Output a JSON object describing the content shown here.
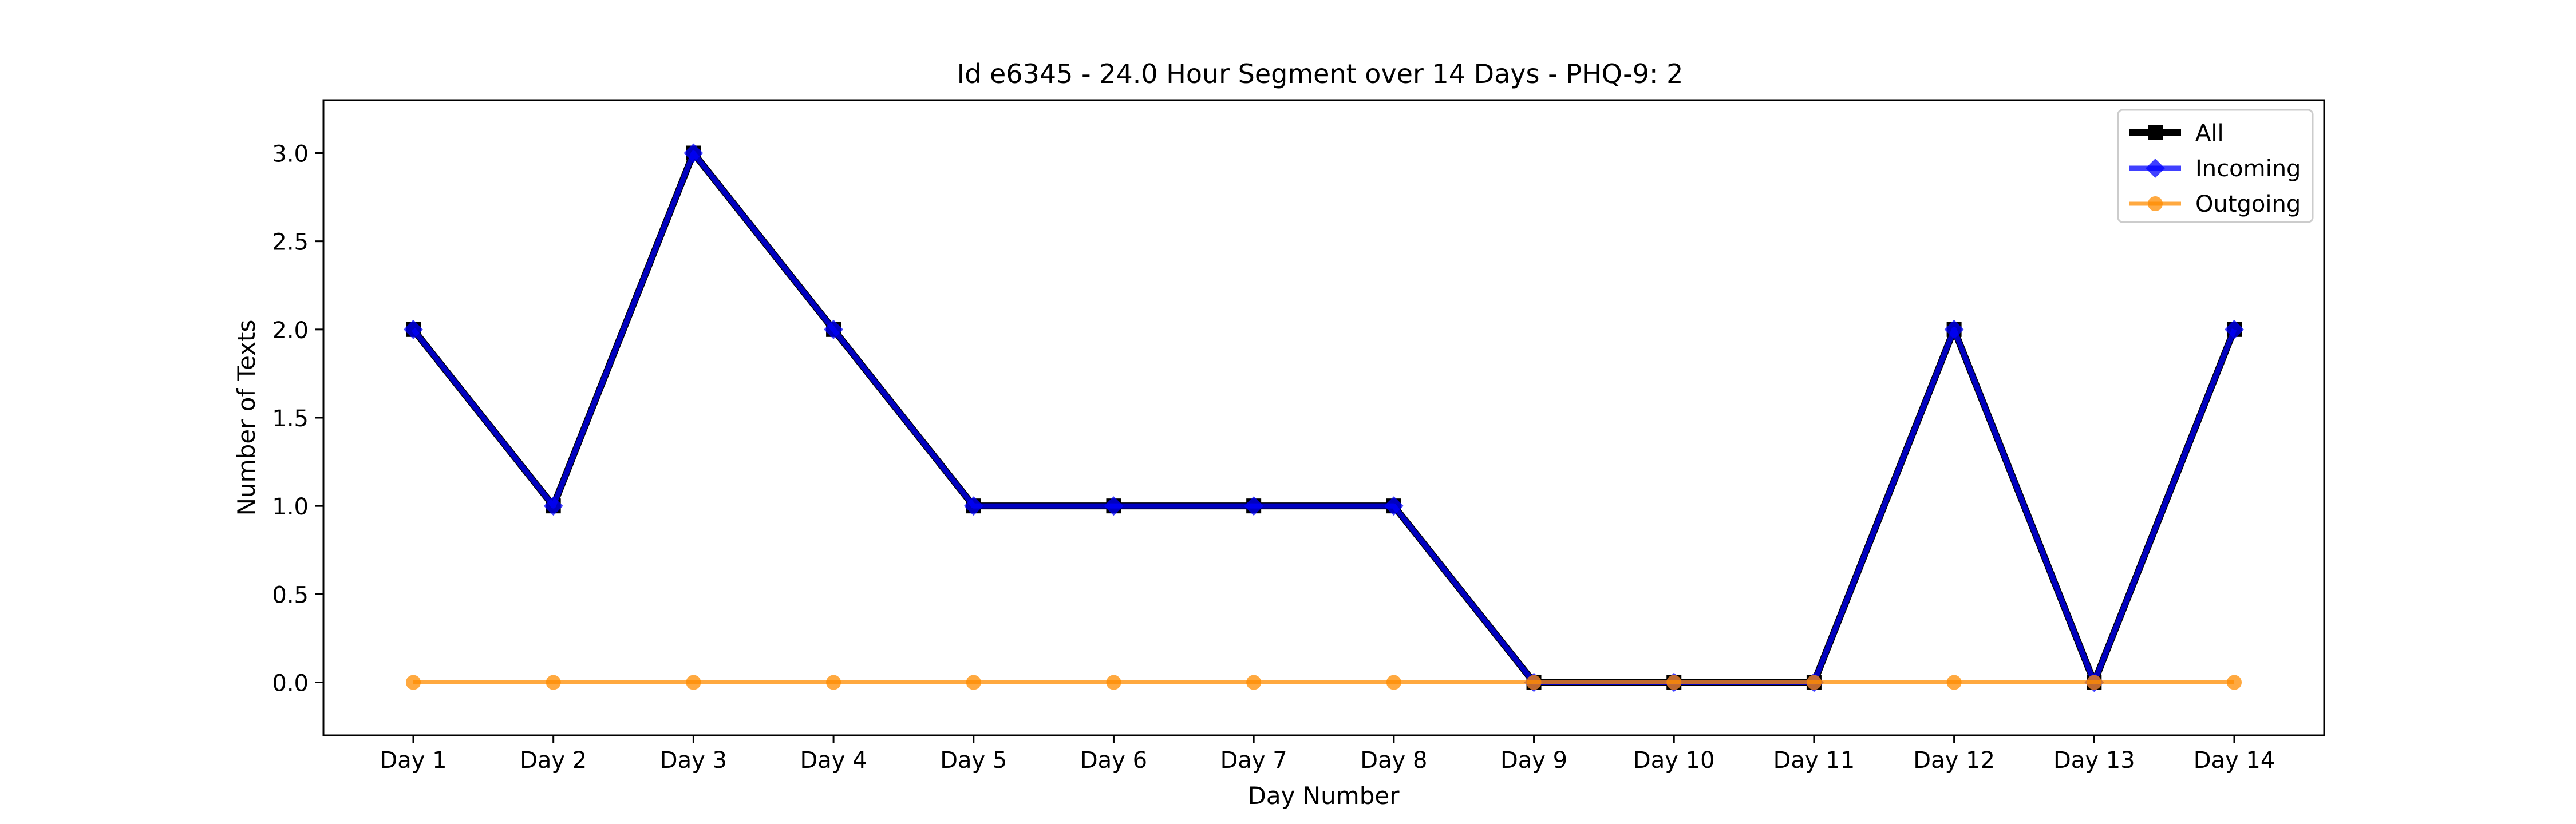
{
  "chart_data": {
    "type": "line",
    "title": "Id e6345 - 24.0 Hour Segment over 14 Days - PHQ-9: 2",
    "xlabel": "Day Number",
    "ylabel": "Number of Texts",
    "categories": [
      "Day 1",
      "Day 2",
      "Day 3",
      "Day 4",
      "Day 5",
      "Day 6",
      "Day 7",
      "Day 8",
      "Day 9",
      "Day 10",
      "Day 11",
      "Day 12",
      "Day 13",
      "Day 14"
    ],
    "ylim": [
      -0.3,
      3.3
    ],
    "yticks": [
      "0.0",
      "0.5",
      "1.0",
      "1.5",
      "2.0",
      "2.5",
      "3.0"
    ],
    "grid": false,
    "legend_position": "top-right",
    "series": [
      {
        "name": "All",
        "color": "#000000",
        "marker": "square",
        "values": [
          2,
          1,
          3,
          2,
          1,
          1,
          1,
          1,
          0,
          0,
          0,
          2,
          0,
          2
        ]
      },
      {
        "name": "Incoming",
        "color": "#0000ff",
        "marker": "diamond",
        "values": [
          2,
          1,
          3,
          2,
          1,
          1,
          1,
          1,
          0,
          0,
          0,
          2,
          0,
          2
        ]
      },
      {
        "name": "Outgoing",
        "color": "#ff8c00",
        "marker": "circle",
        "values": [
          0,
          0,
          0,
          0,
          0,
          0,
          0,
          0,
          0,
          0,
          0,
          0,
          0,
          0
        ]
      }
    ]
  }
}
